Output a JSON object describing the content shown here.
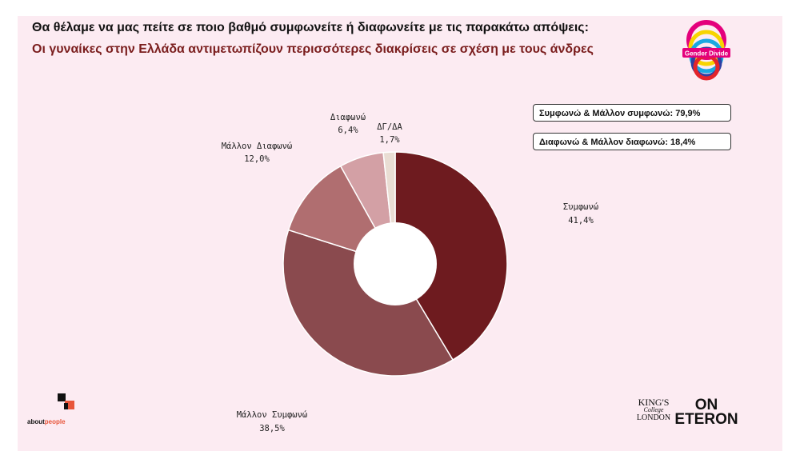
{
  "header": {
    "question": "Θα θέλαμε να μας πείτε σε ποιο βαθμό συμφωνείτε ή διαφωνείτε με τις παρακάτω απόψεις:",
    "statement": "Οι γυναίκες στην Ελλάδα αντιμετωπίζουν περισσότερες διακρίσεις σε σχέση με τους άνδρες"
  },
  "summary": {
    "agree_total": "Συμφωνώ & Μάλλον συμφωνώ: 79,9%",
    "disagree_total": "Διαφωνώ & Μάλλον διαφωνώ: 18,4%"
  },
  "logos": {
    "gender_divide": "Gender Divide",
    "aboutpeople_prefix": "about",
    "aboutpeople_suffix": "people",
    "kings_line1": "KING'S",
    "kings_line2": "College",
    "kings_line3": "LONDON",
    "on_line1": "ON",
    "on_line2": "ETERON"
  },
  "chart_data": {
    "type": "pie",
    "donut": true,
    "start_angle_deg": 0,
    "direction": "clockwise",
    "slices": [
      {
        "label": "Συμφωνώ",
        "display": "41,4%",
        "value": 41.4,
        "color": "#6e1b1f"
      },
      {
        "label": "Μάλλον Συμφωνώ",
        "display": "38,5%",
        "value": 38.5,
        "color": "#8a4a4e"
      },
      {
        "label": "Μάλλον Διαφωνώ",
        "display": "12,0%",
        "value": 12.0,
        "color": "#b06e70"
      },
      {
        "label": "Διαφωνώ",
        "display": "6,4%",
        "value": 6.4,
        "color": "#d3a0a5"
      },
      {
        "label": "ΔΓ/ΔΑ",
        "display": "1,7%",
        "value": 1.7,
        "color": "#e9ddd3"
      }
    ]
  }
}
